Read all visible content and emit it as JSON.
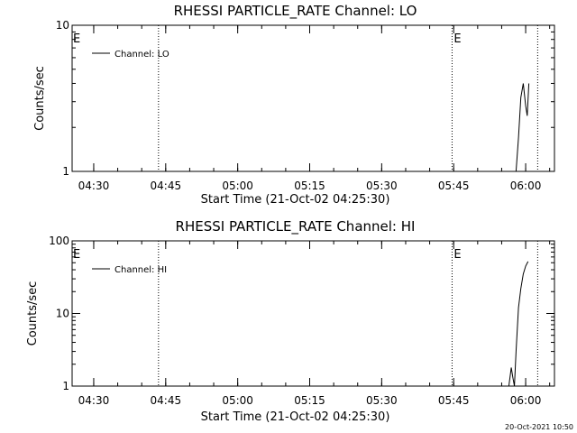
{
  "footer": {
    "timestamp": "20-Oct-2021 10:50"
  },
  "chart_data": [
    {
      "type": "line",
      "title": "RHESSI PARTICLE_RATE Channel: LO",
      "xlabel": "Start Time (21-Oct-02 04:25:30)",
      "ylabel": "Counts/sec",
      "yscale": "log",
      "ylim": [
        1,
        10
      ],
      "yticks": [
        1,
        10
      ],
      "ytick_labels": [
        "1",
        "10"
      ],
      "xlim": [
        "04:25:30",
        "06:06:00"
      ],
      "xticks": [
        "04:30",
        "04:45",
        "05:00",
        "05:15",
        "05:30",
        "05:45",
        "06:00"
      ],
      "minor_xtick_step_minutes": 5,
      "grid": false,
      "legend_position": "top-left",
      "series": [
        {
          "name": "Channel: LO",
          "color": "#000000",
          "points": [
            [
              "05:58:00",
              1.0
            ],
            [
              "05:58:30",
              1.7
            ],
            [
              "05:59:00",
              3.2
            ],
            [
              "05:59:30",
              4.0
            ],
            [
              "06:00:00",
              2.8
            ],
            [
              "06:00:20",
              2.4
            ],
            [
              "06:00:40",
              4.0
            ]
          ]
        }
      ],
      "markers": [
        {
          "time": "04:43:30",
          "label": ""
        },
        {
          "time": "05:44:40",
          "label": "E"
        },
        {
          "time": "06:02:30",
          "label": ""
        }
      ],
      "corner_label": "E"
    },
    {
      "type": "line",
      "title": "RHESSI PARTICLE_RATE Channel: HI",
      "xlabel": "Start Time (21-Oct-02 04:25:30)",
      "ylabel": "Counts/sec",
      "yscale": "log",
      "ylim": [
        1,
        100
      ],
      "yticks": [
        1,
        10,
        100
      ],
      "ytick_labels": [
        "1",
        "10",
        "100"
      ],
      "xlim": [
        "04:25:30",
        "06:06:00"
      ],
      "xticks": [
        "04:30",
        "04:45",
        "05:00",
        "05:15",
        "05:30",
        "05:45",
        "06:00"
      ],
      "minor_xtick_step_minutes": 5,
      "grid": false,
      "legend_position": "top-left",
      "series": [
        {
          "name": "Channel: HI",
          "color": "#000000",
          "points": [
            [
              "05:56:30",
              1.0
            ],
            [
              "05:57:00",
              1.8
            ],
            [
              "05:57:20",
              1.3
            ],
            [
              "05:57:40",
              1.0
            ],
            [
              "05:58:00",
              3.0
            ],
            [
              "05:58:30",
              12.0
            ],
            [
              "05:59:00",
              22.0
            ],
            [
              "05:59:30",
              35.0
            ],
            [
              "06:00:00",
              45.0
            ],
            [
              "06:00:30",
              52.0
            ]
          ]
        }
      ],
      "markers": [
        {
          "time": "04:43:30",
          "label": ""
        },
        {
          "time": "05:44:40",
          "label": "E"
        },
        {
          "time": "06:02:30",
          "label": ""
        }
      ],
      "corner_label": "E"
    }
  ]
}
